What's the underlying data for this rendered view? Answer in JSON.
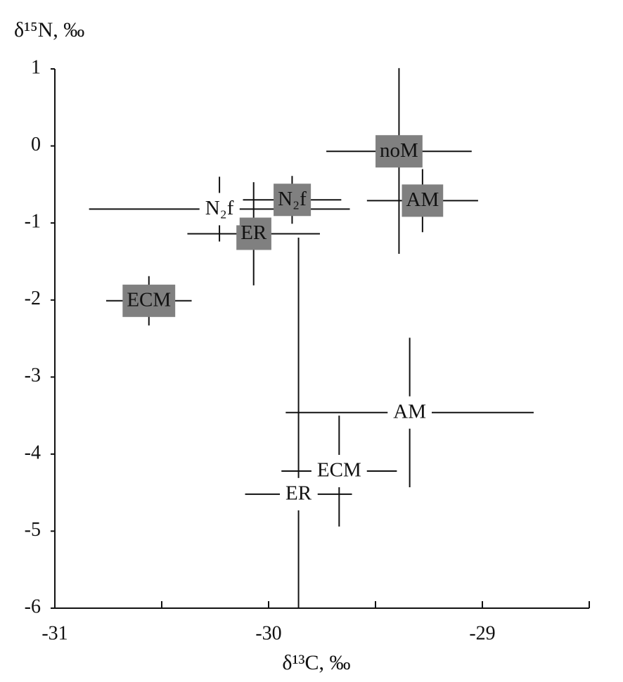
{
  "chart_data": {
    "type": "errorbar-scatter",
    "y_label": "δ¹⁵N, ‰",
    "x_label": "δ¹³C, ‰",
    "xlim": [
      -31,
      -28.5
    ],
    "xticks": [
      -31,
      -30,
      -29
    ],
    "xminor_ticks": [
      -30.5,
      -29.5,
      -28.5
    ],
    "ylim": [
      -6,
      1
    ],
    "yticks": [
      -6,
      -5,
      -4,
      -3,
      -2,
      -1,
      0,
      1
    ],
    "series": [
      {
        "label_fill": "#808080",
        "labels": [
          "noM",
          "AM",
          "N₂f",
          "ER",
          "ECM"
        ],
        "x": [
          -29.39,
          -29.28,
          -29.89,
          -30.07,
          -30.56
        ],
        "y": [
          -0.07,
          -0.71,
          -0.7,
          -1.14,
          -2.01
        ],
        "xerr": [
          0.34,
          0.26,
          0.23,
          0.31,
          0.2
        ],
        "yerr": [
          [
            1.33,
            1.08
          ],
          0.41,
          0.31,
          0.67,
          0.32
        ]
      },
      {
        "labels": [
          "N₂f",
          "ER",
          "ECM",
          "AM"
        ],
        "x": [
          -30.23,
          -29.86,
          -29.67,
          -29.34
        ],
        "y": [
          -0.82,
          -4.52,
          -4.22,
          -3.46
        ],
        "xerr": [
          0.61,
          0.25,
          0.27,
          0.58
        ],
        "yerr": [
          0.42,
          [
            1.48,
            3.33
          ],
          0.72,
          0.97
        ]
      }
    ]
  }
}
